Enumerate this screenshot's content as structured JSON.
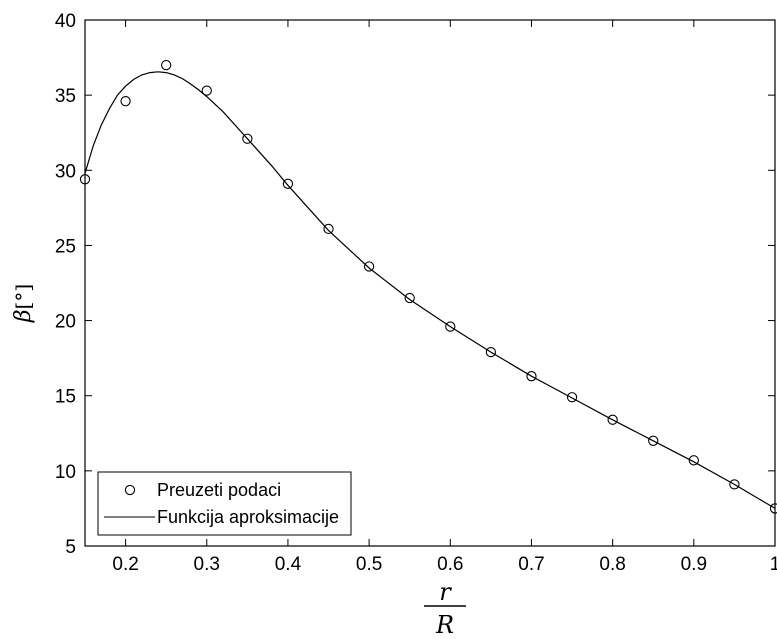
{
  "chart_data": {
    "type": "scatter",
    "title": "",
    "xlabel": {
      "numerator": "r",
      "denominator": "R"
    },
    "ylabel": {
      "symbol": "β",
      "unit": "[°]"
    },
    "xlim": [
      0.15,
      1.0
    ],
    "ylim": [
      5,
      40
    ],
    "xticks": [
      0.2,
      0.3,
      0.4,
      0.5,
      0.6,
      0.7,
      0.8,
      0.9,
      1
    ],
    "xtick_labels": [
      "0.2",
      "0.3",
      "0.4",
      "0.5",
      "0.6",
      "0.7",
      "0.8",
      "0.9",
      "1"
    ],
    "yticks": [
      5,
      10,
      15,
      20,
      25,
      30,
      35,
      40
    ],
    "ytick_labels": [
      "5",
      "10",
      "15",
      "20",
      "25",
      "30",
      "35",
      "40"
    ],
    "grid": false,
    "legend_position": "bottom-left",
    "series": [
      {
        "name": "Preuzeti podaci",
        "style": "markers-circle",
        "x": [
          0.15,
          0.2,
          0.25,
          0.3,
          0.35,
          0.4,
          0.45,
          0.5,
          0.55,
          0.6,
          0.65,
          0.7,
          0.75,
          0.8,
          0.85,
          0.9,
          0.95,
          1.0
        ],
        "y": [
          29.4,
          34.6,
          37.0,
          35.3,
          32.1,
          29.1,
          26.1,
          23.6,
          21.5,
          19.6,
          17.9,
          16.3,
          14.9,
          13.4,
          12.0,
          10.7,
          9.1,
          7.5
        ]
      },
      {
        "name": "Funkcija aproksimacije",
        "style": "line",
        "x": [
          0.15,
          0.16,
          0.17,
          0.18,
          0.19,
          0.2,
          0.21,
          0.22,
          0.23,
          0.24,
          0.25,
          0.26,
          0.27,
          0.28,
          0.29,
          0.3,
          0.32,
          0.35,
          0.38,
          0.4,
          0.45,
          0.5,
          0.55,
          0.6,
          0.65,
          0.7,
          0.75,
          0.8,
          0.85,
          0.9,
          0.95,
          1.0
        ],
        "y": [
          29.8,
          31.6,
          33.0,
          34.1,
          35.0,
          35.6,
          36.05,
          36.35,
          36.5,
          36.55,
          36.5,
          36.35,
          36.1,
          35.75,
          35.35,
          34.9,
          33.9,
          32.1,
          30.3,
          29.0,
          26.0,
          23.5,
          21.4,
          19.6,
          17.9,
          16.3,
          14.85,
          13.4,
          12.0,
          10.6,
          9.1,
          7.5
        ]
      }
    ]
  }
}
